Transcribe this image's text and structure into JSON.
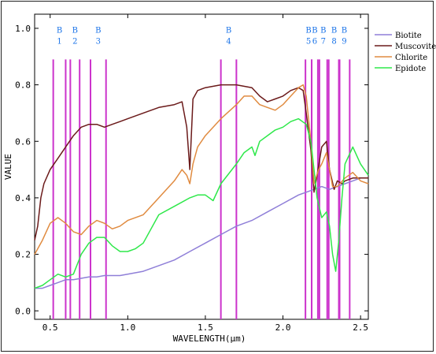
{
  "chart_data": {
    "type": "line",
    "xlabel": "WAVELENGTH(μm)",
    "ylabel": "VALUE",
    "xlim": [
      0.4,
      2.55
    ],
    "ylim": [
      -0.03,
      1.05
    ],
    "xticks": [
      {
        "v": 0.5,
        "t": "0.5"
      },
      {
        "v": 1.0,
        "t": "1.0"
      },
      {
        "v": 1.5,
        "t": "1.5"
      },
      {
        "v": 2.0,
        "t": "2.0"
      },
      {
        "v": 2.5,
        "t": "2.5"
      }
    ],
    "yticks": [
      {
        "v": 0.0,
        "t": "0.0"
      },
      {
        "v": 0.2,
        "t": "0.2"
      },
      {
        "v": 0.4,
        "t": "0.4"
      },
      {
        "v": 0.6,
        "t": "0.6"
      },
      {
        "v": 0.8,
        "t": "0.8"
      },
      {
        "v": 1.0,
        "t": "1.0"
      }
    ],
    "legend_position": "top-right",
    "bands": [
      {
        "label": "B",
        "num": "1",
        "range": [
          0.52,
          0.6
        ]
      },
      {
        "label": "B",
        "num": "2",
        "range": [
          0.63,
          0.69
        ]
      },
      {
        "label": "B",
        "num": "3",
        "range": [
          0.76,
          0.86
        ]
      },
      {
        "label": "B",
        "num": "4",
        "range": [
          1.6,
          1.7
        ]
      },
      {
        "label": "B",
        "num": "5",
        "range": [
          2.145,
          2.185
        ]
      },
      {
        "label": "B",
        "num": "6",
        "range": [
          2.185,
          2.225
        ]
      },
      {
        "label": "B",
        "num": "7",
        "range": [
          2.235,
          2.285
        ]
      },
      {
        "label": "B",
        "num": "8",
        "range": [
          2.295,
          2.365
        ]
      },
      {
        "label": "B",
        "num": "9",
        "range": [
          2.36,
          2.43
        ]
      }
    ],
    "series": [
      {
        "name": "Biotite",
        "color": "#8f7fd8",
        "x": [
          0.4,
          0.45,
          0.5,
          0.55,
          0.6,
          0.65,
          0.7,
          0.75,
          0.8,
          0.85,
          0.9,
          0.95,
          1.0,
          1.1,
          1.2,
          1.3,
          1.4,
          1.5,
          1.6,
          1.7,
          1.8,
          1.9,
          2.0,
          2.1,
          2.15,
          2.2,
          2.25,
          2.3,
          2.35,
          2.4,
          2.45,
          2.5,
          2.55
        ],
        "y": [
          0.08,
          0.08,
          0.09,
          0.1,
          0.11,
          0.11,
          0.115,
          0.12,
          0.12,
          0.125,
          0.125,
          0.125,
          0.13,
          0.14,
          0.16,
          0.18,
          0.21,
          0.24,
          0.27,
          0.3,
          0.32,
          0.35,
          0.38,
          0.41,
          0.42,
          0.43,
          0.44,
          0.43,
          0.44,
          0.45,
          0.46,
          0.47,
          0.47
        ]
      },
      {
        "name": "Muscovite",
        "color": "#6b1a1a",
        "x": [
          0.4,
          0.42,
          0.44,
          0.46,
          0.5,
          0.55,
          0.6,
          0.65,
          0.7,
          0.75,
          0.8,
          0.85,
          0.9,
          0.95,
          1.0,
          1.1,
          1.2,
          1.3,
          1.35,
          1.38,
          1.4,
          1.42,
          1.45,
          1.5,
          1.6,
          1.7,
          1.8,
          1.85,
          1.9,
          1.95,
          2.0,
          2.05,
          2.1,
          2.13,
          2.15,
          2.18,
          2.2,
          2.22,
          2.25,
          2.28,
          2.3,
          2.33,
          2.35,
          2.38,
          2.4,
          2.45,
          2.5,
          2.55
        ],
        "y": [
          0.25,
          0.3,
          0.4,
          0.45,
          0.5,
          0.54,
          0.58,
          0.62,
          0.65,
          0.66,
          0.66,
          0.65,
          0.66,
          0.67,
          0.68,
          0.7,
          0.72,
          0.73,
          0.74,
          0.65,
          0.5,
          0.75,
          0.78,
          0.79,
          0.8,
          0.8,
          0.79,
          0.76,
          0.74,
          0.75,
          0.76,
          0.78,
          0.79,
          0.78,
          0.7,
          0.57,
          0.42,
          0.48,
          0.58,
          0.6,
          0.5,
          0.43,
          0.46,
          0.45,
          0.46,
          0.47,
          0.47,
          0.47
        ]
      },
      {
        "name": "Chlorite",
        "color": "#e08b40",
        "x": [
          0.4,
          0.45,
          0.5,
          0.55,
          0.6,
          0.65,
          0.7,
          0.75,
          0.8,
          0.85,
          0.9,
          0.95,
          1.0,
          1.1,
          1.2,
          1.3,
          1.35,
          1.38,
          1.4,
          1.42,
          1.45,
          1.5,
          1.6,
          1.7,
          1.75,
          1.8,
          1.85,
          1.9,
          1.95,
          2.0,
          2.05,
          2.1,
          2.13,
          2.15,
          2.18,
          2.2,
          2.23,
          2.25,
          2.28,
          2.3,
          2.32,
          2.35,
          2.4,
          2.45,
          2.5,
          2.55
        ],
        "y": [
          0.2,
          0.25,
          0.31,
          0.33,
          0.31,
          0.28,
          0.27,
          0.3,
          0.32,
          0.31,
          0.29,
          0.3,
          0.32,
          0.34,
          0.4,
          0.46,
          0.5,
          0.48,
          0.45,
          0.52,
          0.58,
          0.62,
          0.68,
          0.73,
          0.76,
          0.76,
          0.73,
          0.72,
          0.71,
          0.73,
          0.76,
          0.79,
          0.8,
          0.76,
          0.6,
          0.45,
          0.5,
          0.52,
          0.56,
          0.5,
          0.44,
          0.44,
          0.47,
          0.49,
          0.46,
          0.45
        ]
      },
      {
        "name": "Epidote",
        "color": "#2ee84a",
        "x": [
          0.4,
          0.45,
          0.5,
          0.55,
          0.6,
          0.65,
          0.7,
          0.75,
          0.8,
          0.85,
          0.9,
          0.95,
          1.0,
          1.05,
          1.1,
          1.2,
          1.3,
          1.4,
          1.45,
          1.5,
          1.55,
          1.6,
          1.7,
          1.75,
          1.8,
          1.82,
          1.85,
          1.9,
          1.95,
          2.0,
          2.05,
          2.1,
          2.15,
          2.18,
          2.2,
          2.22,
          2.25,
          2.28,
          2.3,
          2.32,
          2.34,
          2.36,
          2.38,
          2.4,
          2.45,
          2.5,
          2.55
        ],
        "y": [
          0.08,
          0.09,
          0.11,
          0.13,
          0.12,
          0.13,
          0.2,
          0.24,
          0.26,
          0.26,
          0.23,
          0.21,
          0.21,
          0.22,
          0.24,
          0.34,
          0.37,
          0.4,
          0.41,
          0.41,
          0.39,
          0.45,
          0.52,
          0.56,
          0.58,
          0.55,
          0.6,
          0.62,
          0.64,
          0.65,
          0.67,
          0.68,
          0.66,
          0.6,
          0.5,
          0.4,
          0.33,
          0.35,
          0.3,
          0.2,
          0.14,
          0.25,
          0.4,
          0.52,
          0.58,
          0.52,
          0.48
        ]
      }
    ]
  }
}
